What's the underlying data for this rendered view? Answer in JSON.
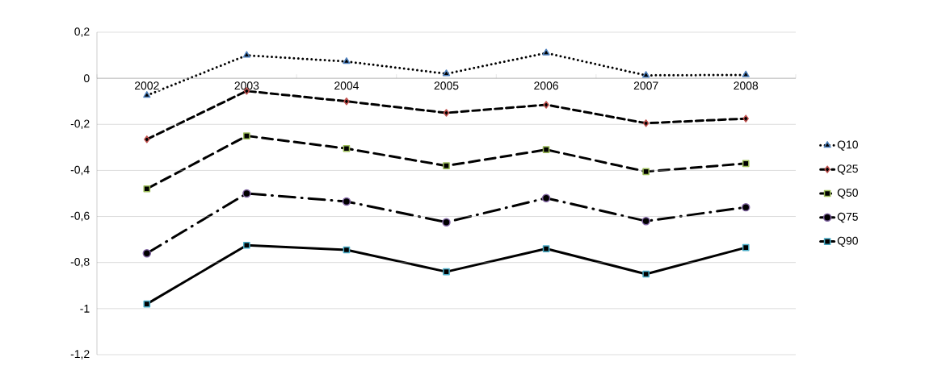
{
  "chart_data": {
    "type": "line",
    "categories": [
      "2002",
      "2003",
      "2004",
      "2005",
      "2006",
      "2007",
      "2008"
    ],
    "series": [
      {
        "name": "Q10",
        "color": "#4f81bd",
        "marker": "triangle",
        "line_style": "dotted",
        "values": [
          -0.074,
          0.1,
          0.073,
          0.02,
          0.11,
          0.013,
          0.015
        ]
      },
      {
        "name": "Q25",
        "color": "#c0504d",
        "marker": "diamond",
        "line_style": "dashed",
        "values": [
          -0.265,
          -0.055,
          -0.1,
          -0.15,
          -0.115,
          -0.195,
          -0.175
        ]
      },
      {
        "name": "Q50",
        "color": "#9bbb59",
        "marker": "square",
        "line_style": "longdashed",
        "values": [
          -0.48,
          -0.25,
          -0.305,
          -0.38,
          -0.31,
          -0.405,
          -0.37
        ]
      },
      {
        "name": "Q75",
        "color": "#8064a2",
        "marker": "circle",
        "line_style": "dashdot",
        "values": [
          -0.76,
          -0.5,
          -0.535,
          -0.625,
          -0.52,
          -0.62,
          -0.56
        ]
      },
      {
        "name": "Q90",
        "color": "#4bacc6",
        "marker": "square",
        "line_style": "solid",
        "values": [
          -0.98,
          -0.725,
          -0.745,
          -0.84,
          -0.74,
          -0.85,
          -0.735
        ]
      }
    ],
    "ylim": [
      -1.2,
      0.2
    ],
    "yticks": [
      {
        "value": -1.2,
        "label": "-1,2"
      },
      -1,
      {
        "value": -0.8,
        "label": "-0,8"
      },
      {
        "value": -0.6,
        "label": "-0,6"
      },
      {
        "value": -0.4,
        "label": "-0,4"
      },
      {
        "value": -0.2,
        "label": "-0,2"
      },
      0,
      {
        "value": 0.2,
        "label": "0,2"
      }
    ],
    "grid": "y",
    "legend": "right"
  }
}
